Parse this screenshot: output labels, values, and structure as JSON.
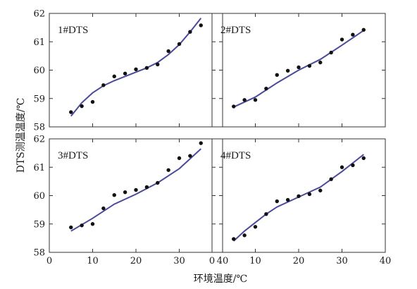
{
  "chart_data": {
    "type": "scatter",
    "xlabel": "环境温度/℃",
    "ylabel": "DTS测温温度/℃",
    "xlim": [
      0,
      40
    ],
    "ylim": [
      58,
      62
    ],
    "x_ticks": [
      "0",
      "10",
      "20",
      "30",
      "40"
    ],
    "y_ticks": [
      "58",
      "59",
      "60",
      "61",
      "62"
    ],
    "colors": {
      "points": "#111111",
      "fit": "#4a4a9a",
      "frame": "#333333"
    },
    "panels": [
      {
        "title": "1#DTS",
        "x": [
          5,
          7.5,
          10,
          12.5,
          15,
          17.5,
          20,
          22.5,
          25,
          27.5,
          30,
          32.5,
          35
        ],
        "y": [
          58.52,
          58.73,
          58.88,
          59.47,
          59.78,
          59.88,
          60.03,
          60.08,
          60.2,
          60.67,
          60.92,
          61.35,
          61.58
        ],
        "fit": [
          [
            5,
            58.38
          ],
          [
            7.5,
            58.85
          ],
          [
            10,
            59.2
          ],
          [
            12.5,
            59.45
          ],
          [
            15,
            59.63
          ],
          [
            17.5,
            59.78
          ],
          [
            20,
            59.93
          ],
          [
            22.5,
            60.08
          ],
          [
            25,
            60.27
          ],
          [
            27.5,
            60.55
          ],
          [
            30,
            60.9
          ],
          [
            32.5,
            61.35
          ],
          [
            35,
            61.83
          ]
        ]
      },
      {
        "title": "2#DTS",
        "x": [
          5,
          7.5,
          10,
          12.5,
          15,
          17.5,
          20,
          22.5,
          25,
          27.5,
          30,
          32.5,
          35
        ],
        "y": [
          58.72,
          58.95,
          58.95,
          59.35,
          59.83,
          59.98,
          60.1,
          60.15,
          60.27,
          60.62,
          61.08,
          61.25,
          61.42
        ],
        "fit": [
          [
            5,
            58.7
          ],
          [
            10,
            59.05
          ],
          [
            15,
            59.55
          ],
          [
            20,
            60.0
          ],
          [
            25,
            60.38
          ],
          [
            30,
            60.88
          ],
          [
            35,
            61.4
          ]
        ]
      },
      {
        "title": "3#DTS",
        "x": [
          5,
          7.5,
          10,
          12.5,
          15,
          17.5,
          20,
          22.5,
          25,
          27.5,
          30,
          32.5,
          35
        ],
        "y": [
          58.88,
          58.95,
          59.0,
          59.55,
          60.02,
          60.12,
          60.2,
          60.3,
          60.45,
          60.9,
          61.32,
          61.4,
          61.85
        ],
        "fit": [
          [
            5,
            58.75
          ],
          [
            10,
            59.2
          ],
          [
            15,
            59.7
          ],
          [
            20,
            60.05
          ],
          [
            25,
            60.45
          ],
          [
            30,
            60.95
          ],
          [
            35,
            61.65
          ]
        ]
      },
      {
        "title": "4#DTS",
        "x": [
          5,
          7.5,
          10,
          12.5,
          15,
          17.5,
          20,
          22.5,
          25,
          27.5,
          30,
          32.5,
          35
        ],
        "y": [
          58.47,
          58.6,
          58.9,
          59.35,
          59.8,
          59.85,
          59.98,
          60.05,
          60.18,
          60.58,
          61.0,
          61.07,
          61.32
        ],
        "fit": [
          [
            5,
            58.4
          ],
          [
            7.5,
            58.75
          ],
          [
            10,
            59.05
          ],
          [
            12.5,
            59.35
          ],
          [
            15,
            59.6
          ],
          [
            20,
            59.95
          ],
          [
            25,
            60.3
          ],
          [
            30,
            60.85
          ],
          [
            35,
            61.45
          ]
        ]
      }
    ]
  }
}
